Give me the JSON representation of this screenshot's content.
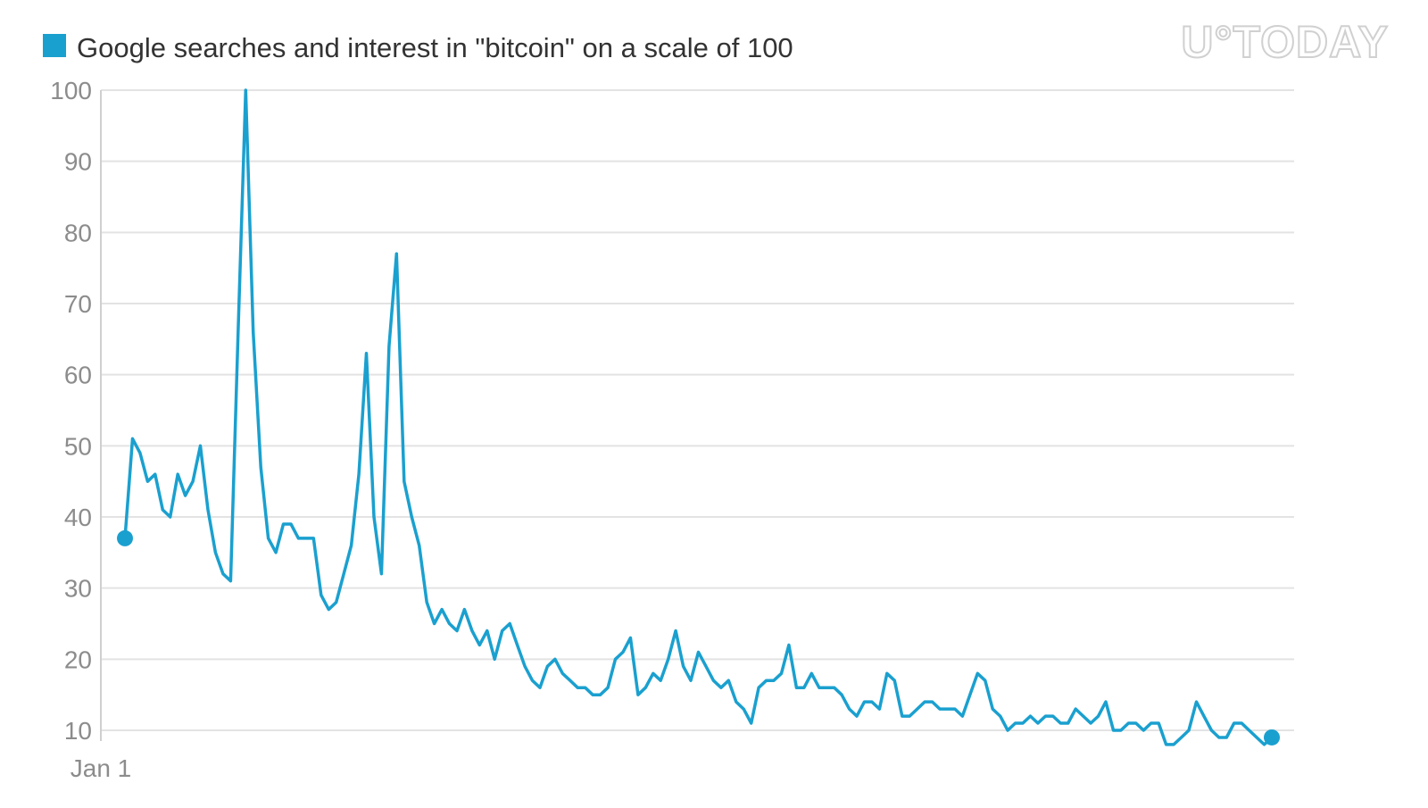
{
  "watermark": "U°TODAY",
  "chart_data": {
    "type": "line",
    "legend_position": "top-left",
    "grid": true,
    "x_tick_labels": [
      "Jan 1"
    ],
    "ylim": [
      10,
      100
    ],
    "yticks": [
      10,
      20,
      30,
      40,
      50,
      60,
      70,
      80,
      90,
      100
    ],
    "colors": {
      "series": "#1aa0cf",
      "grid": "#e3e3e3",
      "tick_text": "#8c8c8c"
    },
    "series": [
      {
        "name": "Google searches and interest in \"bitcoin\" on a scale of 100",
        "marker_endpoints": true,
        "values": [
          37,
          51,
          49,
          45,
          46,
          41,
          40,
          46,
          43,
          45,
          50,
          41,
          35,
          32,
          31,
          66,
          100,
          66,
          47,
          37,
          35,
          39,
          39,
          37,
          37,
          37,
          29,
          27,
          28,
          32,
          36,
          46,
          63,
          40,
          32,
          64,
          77,
          45,
          40,
          36,
          28,
          25,
          27,
          25,
          24,
          27,
          24,
          22,
          24,
          20,
          24,
          25,
          22,
          19,
          17,
          16,
          19,
          20,
          18,
          17,
          16,
          16,
          15,
          15,
          16,
          20,
          21,
          23,
          15,
          16,
          18,
          17,
          20,
          24,
          19,
          17,
          21,
          19,
          17,
          16,
          17,
          14,
          13,
          11,
          16,
          17,
          17,
          18,
          22,
          16,
          16,
          18,
          16,
          16,
          16,
          15,
          13,
          12,
          14,
          14,
          13,
          18,
          17,
          12,
          12,
          13,
          14,
          14,
          13,
          13,
          13,
          12,
          15,
          18,
          17,
          13,
          12,
          10,
          11,
          11,
          12,
          11,
          12,
          12,
          11,
          11,
          13,
          12,
          11,
          12,
          14,
          10,
          10,
          11,
          11,
          10,
          11,
          11,
          8,
          8,
          9,
          10,
          14,
          12,
          10,
          9,
          9,
          11,
          11,
          10,
          9,
          8,
          9
        ]
      }
    ]
  }
}
